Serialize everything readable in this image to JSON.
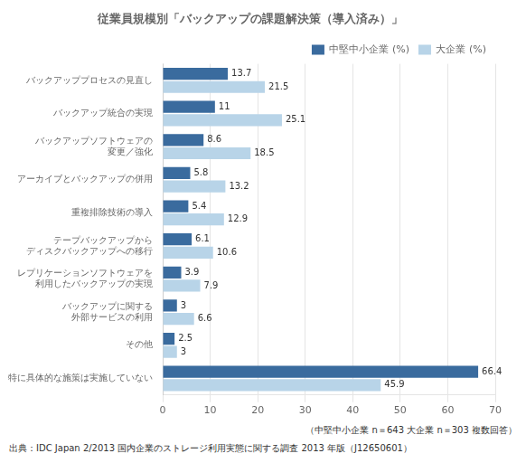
{
  "chart_data": {
    "type": "bar",
    "orientation": "horizontal",
    "title": "従業員規模別「バックアップの課題解決策（導入済み）」",
    "categories": [
      "特に具体的な施策は実施していない",
      "その他",
      "バックアップに関する\n外部サービスの利用",
      "レプリケーションソフトウェアを\n利用したバックアップの実現",
      "テープバックアップから\nディスクバックアップへの移行",
      "重複排除技術の導入",
      "アーカイブとバックアップの併用",
      "バックアップソフトウェアの\n変更／強化",
      "バックアップ統合の実現",
      "バックアッププロセスの見直し"
    ],
    "series": [
      {
        "name": "中堅中小企業 (%)",
        "color": "#3a6b9e",
        "values": [
          66.4,
          2.5,
          3.0,
          3.9,
          6.1,
          5.4,
          5.8,
          8.6,
          11.0,
          13.7
        ]
      },
      {
        "name": "大企業 (%)",
        "color": "#b8d4e8",
        "values": [
          45.9,
          3.0,
          6.6,
          7.9,
          10.6,
          12.9,
          13.2,
          18.5,
          25.1,
          21.5
        ]
      }
    ],
    "xlim": [
      0,
      70
    ],
    "xticks": [
      0,
      10,
      20,
      30,
      40,
      50,
      60,
      70
    ],
    "grid": true,
    "legend": "upper right",
    "data_labels": true,
    "annotations": [
      "（中堅中小企業 n＝643  大企業 n＝303  複数回答）",
      "出典：IDC Japan 2/2013 国内企業のストレージ利用実態に関する調査 2013 年版（J12650601）"
    ]
  }
}
